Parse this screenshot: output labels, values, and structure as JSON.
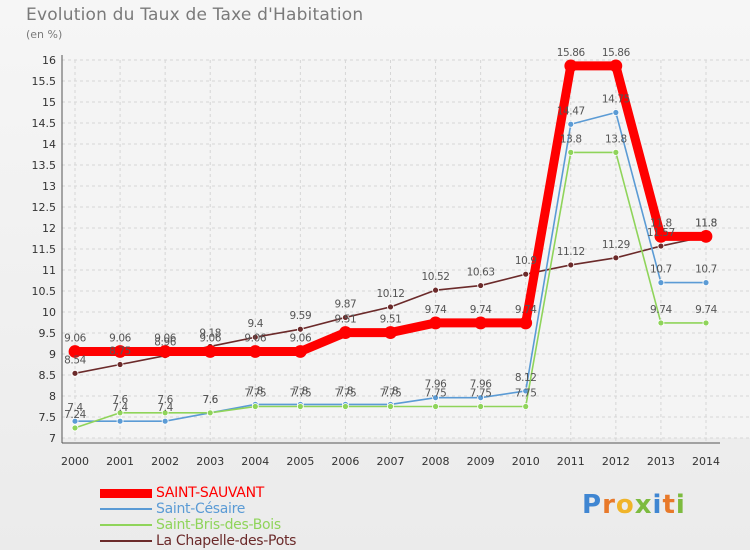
{
  "chart_title": "Evolution du Taux de Taxe d'Habitation",
  "chart_subtitle": "(en %)",
  "brand": {
    "letters": [
      "P",
      "r",
      "o",
      "x",
      "i",
      "t",
      "i"
    ],
    "colors": [
      "#3f86d2",
      "#e8792a",
      "#f0b429",
      "#7dbb3f",
      "#3f86d2",
      "#e8792a",
      "#7dbb3f"
    ]
  },
  "chart_data": {
    "type": "line",
    "title": "Evolution du Taux de Taxe d'Habitation",
    "subtitle": "(en %)",
    "xlabel": "",
    "ylabel": "",
    "x": [
      "2000",
      "2001",
      "2002",
      "2003",
      "2004",
      "2005",
      "2006",
      "2007",
      "2008",
      "2009",
      "2010",
      "2011",
      "2012",
      "2013",
      "2014"
    ],
    "ylim": [
      7,
      16
    ],
    "yticks": [
      "7",
      "7.5",
      "8",
      "8.5",
      "9",
      "9.5",
      "10",
      "10.5",
      "11",
      "11.5",
      "12",
      "12.5",
      "13",
      "13.5",
      "14",
      "14.5",
      "15",
      "15.5",
      "16"
    ],
    "grid": true,
    "legend_position": "bottom-left",
    "series": [
      {
        "name": "SAINT-SAUVANT",
        "color": "#ff0000",
        "values": [
          9.06,
          9.06,
          9.06,
          9.06,
          9.06,
          9.06,
          9.51,
          9.51,
          9.74,
          9.74,
          9.74,
          15.86,
          15.86,
          11.8,
          11.8
        ]
      },
      {
        "name": "Saint-Césaire",
        "color": "#5b9bd5",
        "values": [
          7.4,
          7.4,
          7.4,
          7.6,
          7.8,
          7.8,
          7.8,
          7.8,
          7.96,
          7.96,
          8.12,
          14.47,
          14.75,
          10.7,
          10.7
        ]
      },
      {
        "name": "Saint-Bris-des-Bois",
        "color": "#8fd45a",
        "values": [
          7.24,
          7.6,
          7.6,
          7.6,
          7.75,
          7.75,
          7.75,
          7.75,
          7.75,
          7.75,
          7.75,
          13.8,
          13.8,
          9.74,
          9.74
        ]
      },
      {
        "name": "La Chapelle-des-Pots",
        "color": "#6b2a2a",
        "values": [
          8.54,
          8.75,
          8.96,
          9.18,
          9.4,
          9.59,
          9.87,
          10.12,
          10.52,
          10.63,
          10.9,
          11.12,
          11.29,
          11.57,
          11.8
        ]
      }
    ],
    "data_labels": [
      [
        "9.06",
        "9.06",
        "9.06",
        "9.06",
        "9.06",
        "9.06",
        "9.51",
        "9.51",
        "9.74",
        "9.74",
        "9.74",
        "15.86",
        "15.86",
        "11.8",
        "11.8"
      ],
      [
        "7.4",
        "7.4",
        "7.4",
        "7.6",
        "7.8",
        "7.8",
        "7.8",
        "7.8",
        "7.96",
        "7.96",
        "8.12",
        "14.47",
        "14.75",
        "10.7",
        "10.7"
      ],
      [
        "7.24",
        "7.6",
        "7.6",
        "7.6",
        "7.75",
        "7.75",
        "7.75",
        "7.75",
        "7.75",
        "7.75",
        "7.75",
        "13.8",
        "13.8",
        "9.74",
        "9.74"
      ],
      [
        "8.54",
        "8.75",
        "8.96",
        "9.18",
        "9.4",
        "9.59",
        "9.87",
        "10.12",
        "10.52",
        "10.63",
        "10.9",
        "11.12",
        "11.29",
        "11.57",
        "11.8"
      ]
    ]
  }
}
